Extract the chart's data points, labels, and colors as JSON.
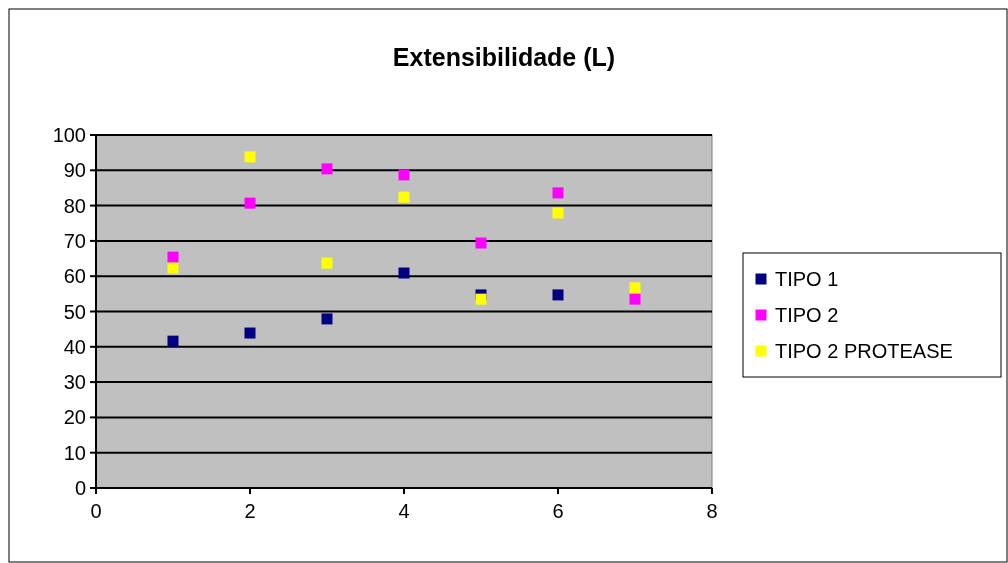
{
  "chart_data": {
    "type": "scatter",
    "title": "Extensibilidade (L)",
    "x": [
      1,
      2,
      3,
      4,
      5,
      6,
      7
    ],
    "series": [
      {
        "name": "TIPO 1",
        "color": "#000080",
        "values": [
          41.6,
          43.9,
          47.9,
          60.9,
          54.7,
          54.7,
          null
        ]
      },
      {
        "name": "TIPO 2",
        "color": "#ff00ff",
        "values": [
          65.4,
          80.7,
          90.4,
          88.7,
          69.4,
          83.6,
          53.5
        ]
      },
      {
        "name": "TIPO 2 PROTEASE",
        "color": "#ffff00",
        "values": [
          62.3,
          93.8,
          63.7,
          82.4,
          53.5,
          77.9,
          56.7
        ]
      }
    ],
    "xlim": [
      0,
      8
    ],
    "xticks": [
      0,
      2,
      4,
      6,
      8
    ],
    "ylim": [
      0,
      100
    ],
    "yticks": [
      0,
      10,
      20,
      30,
      40,
      50,
      60,
      70,
      80,
      90,
      100
    ],
    "grid": "y",
    "legend": "right",
    "marker": "square"
  }
}
